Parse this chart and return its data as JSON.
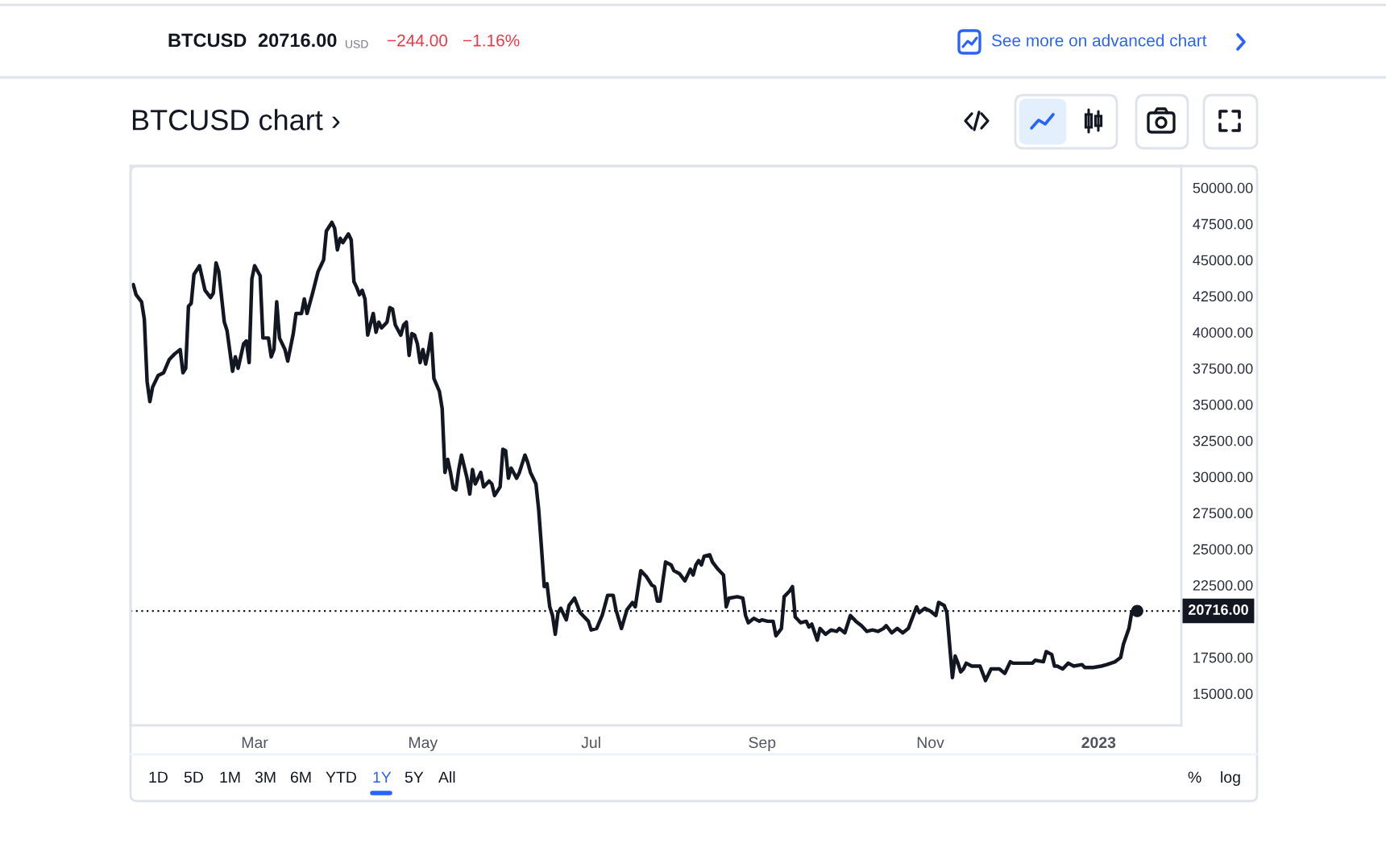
{
  "chart_data": {
    "type": "line",
    "title": "BTCUSD chart ›",
    "series": [
      {
        "color": "#131722",
        "x": [
          "2022-01-16",
          "2022-01-17",
          "2022-01-19",
          "2022-01-20",
          "2022-01-21",
          "2022-01-22",
          "2022-01-23",
          "2022-01-25",
          "2022-01-27",
          "2022-01-29",
          "2022-01-31",
          "2022-02-02",
          "2022-02-03",
          "2022-02-04",
          "2022-02-05",
          "2022-02-06",
          "2022-02-07",
          "2022-02-09",
          "2022-02-11",
          "2022-02-13",
          "2022-02-14",
          "2022-02-15",
          "2022-02-16",
          "2022-02-18",
          "2022-02-19",
          "2022-02-21",
          "2022-02-22",
          "2022-02-23",
          "2022-02-25",
          "2022-02-26",
          "2022-02-27",
          "2022-02-28",
          "2022-03-01",
          "2022-03-03",
          "2022-03-04",
          "2022-03-06",
          "2022-03-07",
          "2022-03-08",
          "2022-03-09",
          "2022-03-10",
          "2022-03-12",
          "2022-03-13",
          "2022-03-15",
          "2022-03-16",
          "2022-03-18",
          "2022-03-19",
          "2022-03-20",
          "2022-03-22",
          "2022-03-24",
          "2022-03-25",
          "2022-03-26",
          "2022-03-27",
          "2022-03-29",
          "2022-03-30",
          "2022-03-31",
          "2022-04-01",
          "2022-04-02",
          "2022-04-04",
          "2022-04-05",
          "2022-04-06",
          "2022-04-07",
          "2022-04-08",
          "2022-04-09",
          "2022-04-10",
          "2022-04-11",
          "2022-04-13",
          "2022-04-14",
          "2022-04-15",
          "2022-04-16",
          "2022-04-18",
          "2022-04-19",
          "2022-04-20",
          "2022-04-21",
          "2022-04-23",
          "2022-04-24",
          "2022-04-25",
          "2022-04-26",
          "2022-04-27",
          "2022-04-28",
          "2022-04-29",
          "2022-04-30",
          "2022-05-01",
          "2022-05-02",
          "2022-05-03",
          "2022-05-04",
          "2022-05-05",
          "2022-05-07",
          "2022-05-08",
          "2022-05-09",
          "2022-05-10",
          "2022-05-11",
          "2022-05-12",
          "2022-05-13",
          "2022-05-14",
          "2022-05-15",
          "2022-05-17",
          "2022-05-18",
          "2022-05-19",
          "2022-05-20",
          "2022-05-22",
          "2022-05-23",
          "2022-05-25",
          "2022-05-26",
          "2022-05-27",
          "2022-05-29",
          "2022-05-30",
          "2022-05-31",
          "2022-06-01",
          "2022-06-02",
          "2022-06-04",
          "2022-06-05",
          "2022-06-07",
          "2022-06-08",
          "2022-06-09",
          "2022-06-11",
          "2022-06-12",
          "2022-06-13",
          "2022-06-14",
          "2022-06-15",
          "2022-06-16",
          "2022-06-17",
          "2022-06-18",
          "2022-06-19",
          "2022-06-20",
          "2022-06-22",
          "2022-06-23",
          "2022-06-25",
          "2022-06-27",
          "2022-06-30",
          "2022-07-01",
          "2022-07-03",
          "2022-07-05",
          "2022-07-07",
          "2022-07-09",
          "2022-07-10",
          "2022-07-12",
          "2022-07-14",
          "2022-07-16",
          "2022-07-17",
          "2022-07-19",
          "2022-07-21",
          "2022-07-23",
          "2022-07-24",
          "2022-07-25",
          "2022-07-26",
          "2022-07-28",
          "2022-07-30",
          "2022-07-31",
          "2022-08-02",
          "2022-08-04",
          "2022-08-05",
          "2022-08-06",
          "2022-08-07",
          "2022-08-08",
          "2022-08-09",
          "2022-08-10",
          "2022-08-11",
          "2022-08-13",
          "2022-08-14",
          "2022-08-16",
          "2022-08-18",
          "2022-08-19",
          "2022-08-20",
          "2022-08-23",
          "2022-08-25",
          "2022-08-26",
          "2022-08-27",
          "2022-08-29",
          "2022-08-31",
          "2022-09-01",
          "2022-09-03",
          "2022-09-05",
          "2022-09-06",
          "2022-09-08",
          "2022-09-09",
          "2022-09-11",
          "2022-09-12",
          "2022-09-13",
          "2022-09-15",
          "2022-09-17",
          "2022-09-18",
          "2022-09-19",
          "2022-09-21",
          "2022-09-22",
          "2022-09-24",
          "2022-09-26",
          "2022-09-28",
          "2022-09-29",
          "2022-10-01",
          "2022-10-03",
          "2022-10-05",
          "2022-10-07",
          "2022-10-09",
          "2022-10-11",
          "2022-10-13",
          "2022-10-15",
          "2022-10-16",
          "2022-10-18",
          "2022-10-20",
          "2022-10-22",
          "2022-10-24",
          "2022-10-25",
          "2022-10-27",
          "2022-10-28",
          "2022-10-30",
          "2022-11-01",
          "2022-11-03",
          "2022-11-04",
          "2022-11-06",
          "2022-11-07",
          "2022-11-09",
          "2022-11-10",
          "2022-11-11",
          "2022-11-12",
          "2022-11-13",
          "2022-11-14",
          "2022-11-16",
          "2022-11-19",
          "2022-11-21",
          "2022-11-23",
          "2022-11-26",
          "2022-11-28",
          "2022-11-30",
          "2022-12-01",
          "2022-12-03",
          "2022-12-06",
          "2022-12-08",
          "2022-12-09",
          "2022-12-12",
          "2022-12-13",
          "2022-12-15",
          "2022-12-16",
          "2022-12-17",
          "2022-12-19",
          "2022-12-21",
          "2022-12-23",
          "2022-12-26",
          "2022-12-27",
          "2022-12-30",
          "2023-01-02",
          "2023-01-04",
          "2023-01-07",
          "2023-01-09",
          "2023-01-10",
          "2023-01-12",
          "2023-01-13",
          "2023-01-14",
          "2023-01-15"
        ],
        "values": [
          43300,
          42600,
          42100,
          40900,
          36600,
          35200,
          36200,
          37000,
          37200,
          38100,
          38500,
          38800,
          37200,
          37500,
          41800,
          42000,
          44000,
          44600,
          42900,
          42400,
          42700,
          44800,
          44200,
          40700,
          40100,
          37300,
          38300,
          37500,
          39200,
          39400,
          37900,
          43700,
          44600,
          43900,
          39600,
          39600,
          38300,
          38800,
          42100,
          39600,
          38800,
          38000,
          39900,
          41300,
          41300,
          42300,
          41300,
          42700,
          44200,
          44600,
          45000,
          47000,
          47600,
          47200,
          45700,
          46500,
          46200,
          46800,
          46400,
          43500,
          43100,
          42600,
          42900,
          42300,
          39800,
          41300,
          40000,
          40700,
          40300,
          40700,
          41700,
          41600,
          40500,
          39800,
          40500,
          40700,
          38400,
          39900,
          39800,
          39200,
          37900,
          38800,
          37800,
          38700,
          39900,
          36800,
          35900,
          34700,
          30300,
          31200,
          30300,
          29200,
          29100,
          30500,
          31500,
          29900,
          28800,
          30500,
          29500,
          30300,
          29300,
          29700,
          29500,
          28700,
          29300,
          31900,
          31800,
          29900,
          30600,
          29900,
          30300,
          31500,
          31000,
          30300,
          29500,
          27700,
          25100,
          22400,
          22600,
          21000,
          20400,
          19100,
          20600,
          20900,
          20100,
          21100,
          21600,
          20600,
          20000,
          19400,
          19500,
          20400,
          21800,
          21800,
          20800,
          19500,
          20800,
          21300,
          21000,
          23500,
          23100,
          22500,
          22400,
          21400,
          21400,
          24100,
          23900,
          23500,
          23300,
          22800,
          23200,
          23600,
          23200,
          23900,
          24200,
          23900,
          24500,
          24600,
          24100,
          23600,
          23200,
          21000,
          21600,
          21700,
          21600,
          20400,
          19900,
          20200,
          20000,
          20100,
          20000,
          20000,
          19000,
          19500,
          21700,
          22100,
          22400,
          20300,
          19900,
          20000,
          19600,
          19800,
          18700,
          19500,
          19100,
          19400,
          19300,
          19500,
          19200,
          20400,
          20000,
          19700,
          19300,
          19400,
          19300,
          19500,
          19700,
          19200,
          19500,
          19200,
          19500,
          20000,
          21000,
          20600,
          20900,
          20700,
          20400,
          21300,
          21100,
          20600,
          16100,
          17600,
          17100,
          16500,
          16700,
          17100,
          16900,
          16900,
          15900,
          16700,
          16700,
          16400,
          17200,
          17100,
          17100,
          17100,
          17100,
          17300,
          17200,
          17900,
          17700,
          16900,
          16900,
          16700,
          17100,
          16900,
          17000,
          16800,
          16800,
          16900,
          17000,
          17200,
          17500,
          18400,
          19500,
          20600,
          20900,
          20716
        ]
      },
      {
        "type": "scatter",
        "color": "#131722",
        "x": [
          "2023-01-15"
        ],
        "values": [
          20716
        ]
      }
    ],
    "xlim": [
      "2022-01-15",
      "2023-01-31"
    ],
    "xticks": [
      {
        "value": "2022-03-01",
        "label": "Mar"
      },
      {
        "value": "2022-05-01",
        "label": "May"
      },
      {
        "value": "2022-07-01",
        "label": "Jul"
      },
      {
        "value": "2022-09-01",
        "label": "Sep"
      },
      {
        "value": "2022-11-01",
        "label": "Nov"
      },
      {
        "value": "2023-01-01",
        "label": "2023"
      }
    ],
    "ylim": [
      12800,
      51500
    ],
    "yticks": [
      {
        "value": 15000,
        "label": "15000.00"
      },
      {
        "value": 17500,
        "label": "17500.00"
      },
      {
        "value": 22500,
        "label": "22500.00"
      },
      {
        "value": 25000,
        "label": "25000.00"
      },
      {
        "value": 27500,
        "label": "27500.00"
      },
      {
        "value": 30000,
        "label": "30000.00"
      },
      {
        "value": 32500,
        "label": "32500.00"
      },
      {
        "value": 35000,
        "label": "35000.00"
      },
      {
        "value": 37500,
        "label": "37500.00"
      },
      {
        "value": 40000,
        "label": "40000.00"
      },
      {
        "value": 42500,
        "label": "42500.00"
      },
      {
        "value": 45000,
        "label": "45000.00"
      },
      {
        "value": 47500,
        "label": "47500.00"
      },
      {
        "value": 50000,
        "label": "50000.00"
      }
    ],
    "ref_lines": [
      {
        "axis": "y",
        "value": 20716,
        "label": "20716.00",
        "color": "#131722",
        "line_style": "dotted"
      }
    ],
    "grid": false,
    "annotations": [
      "BTCUSD",
      "20716.00",
      "USD",
      "−244.00",
      "−1.16%",
      "See more on advanced chart",
      "1D",
      "5D",
      "1M",
      "3M",
      "6M",
      "YTD",
      "1Y",
      "5Y",
      "All",
      "%",
      "log"
    ]
  }
}
